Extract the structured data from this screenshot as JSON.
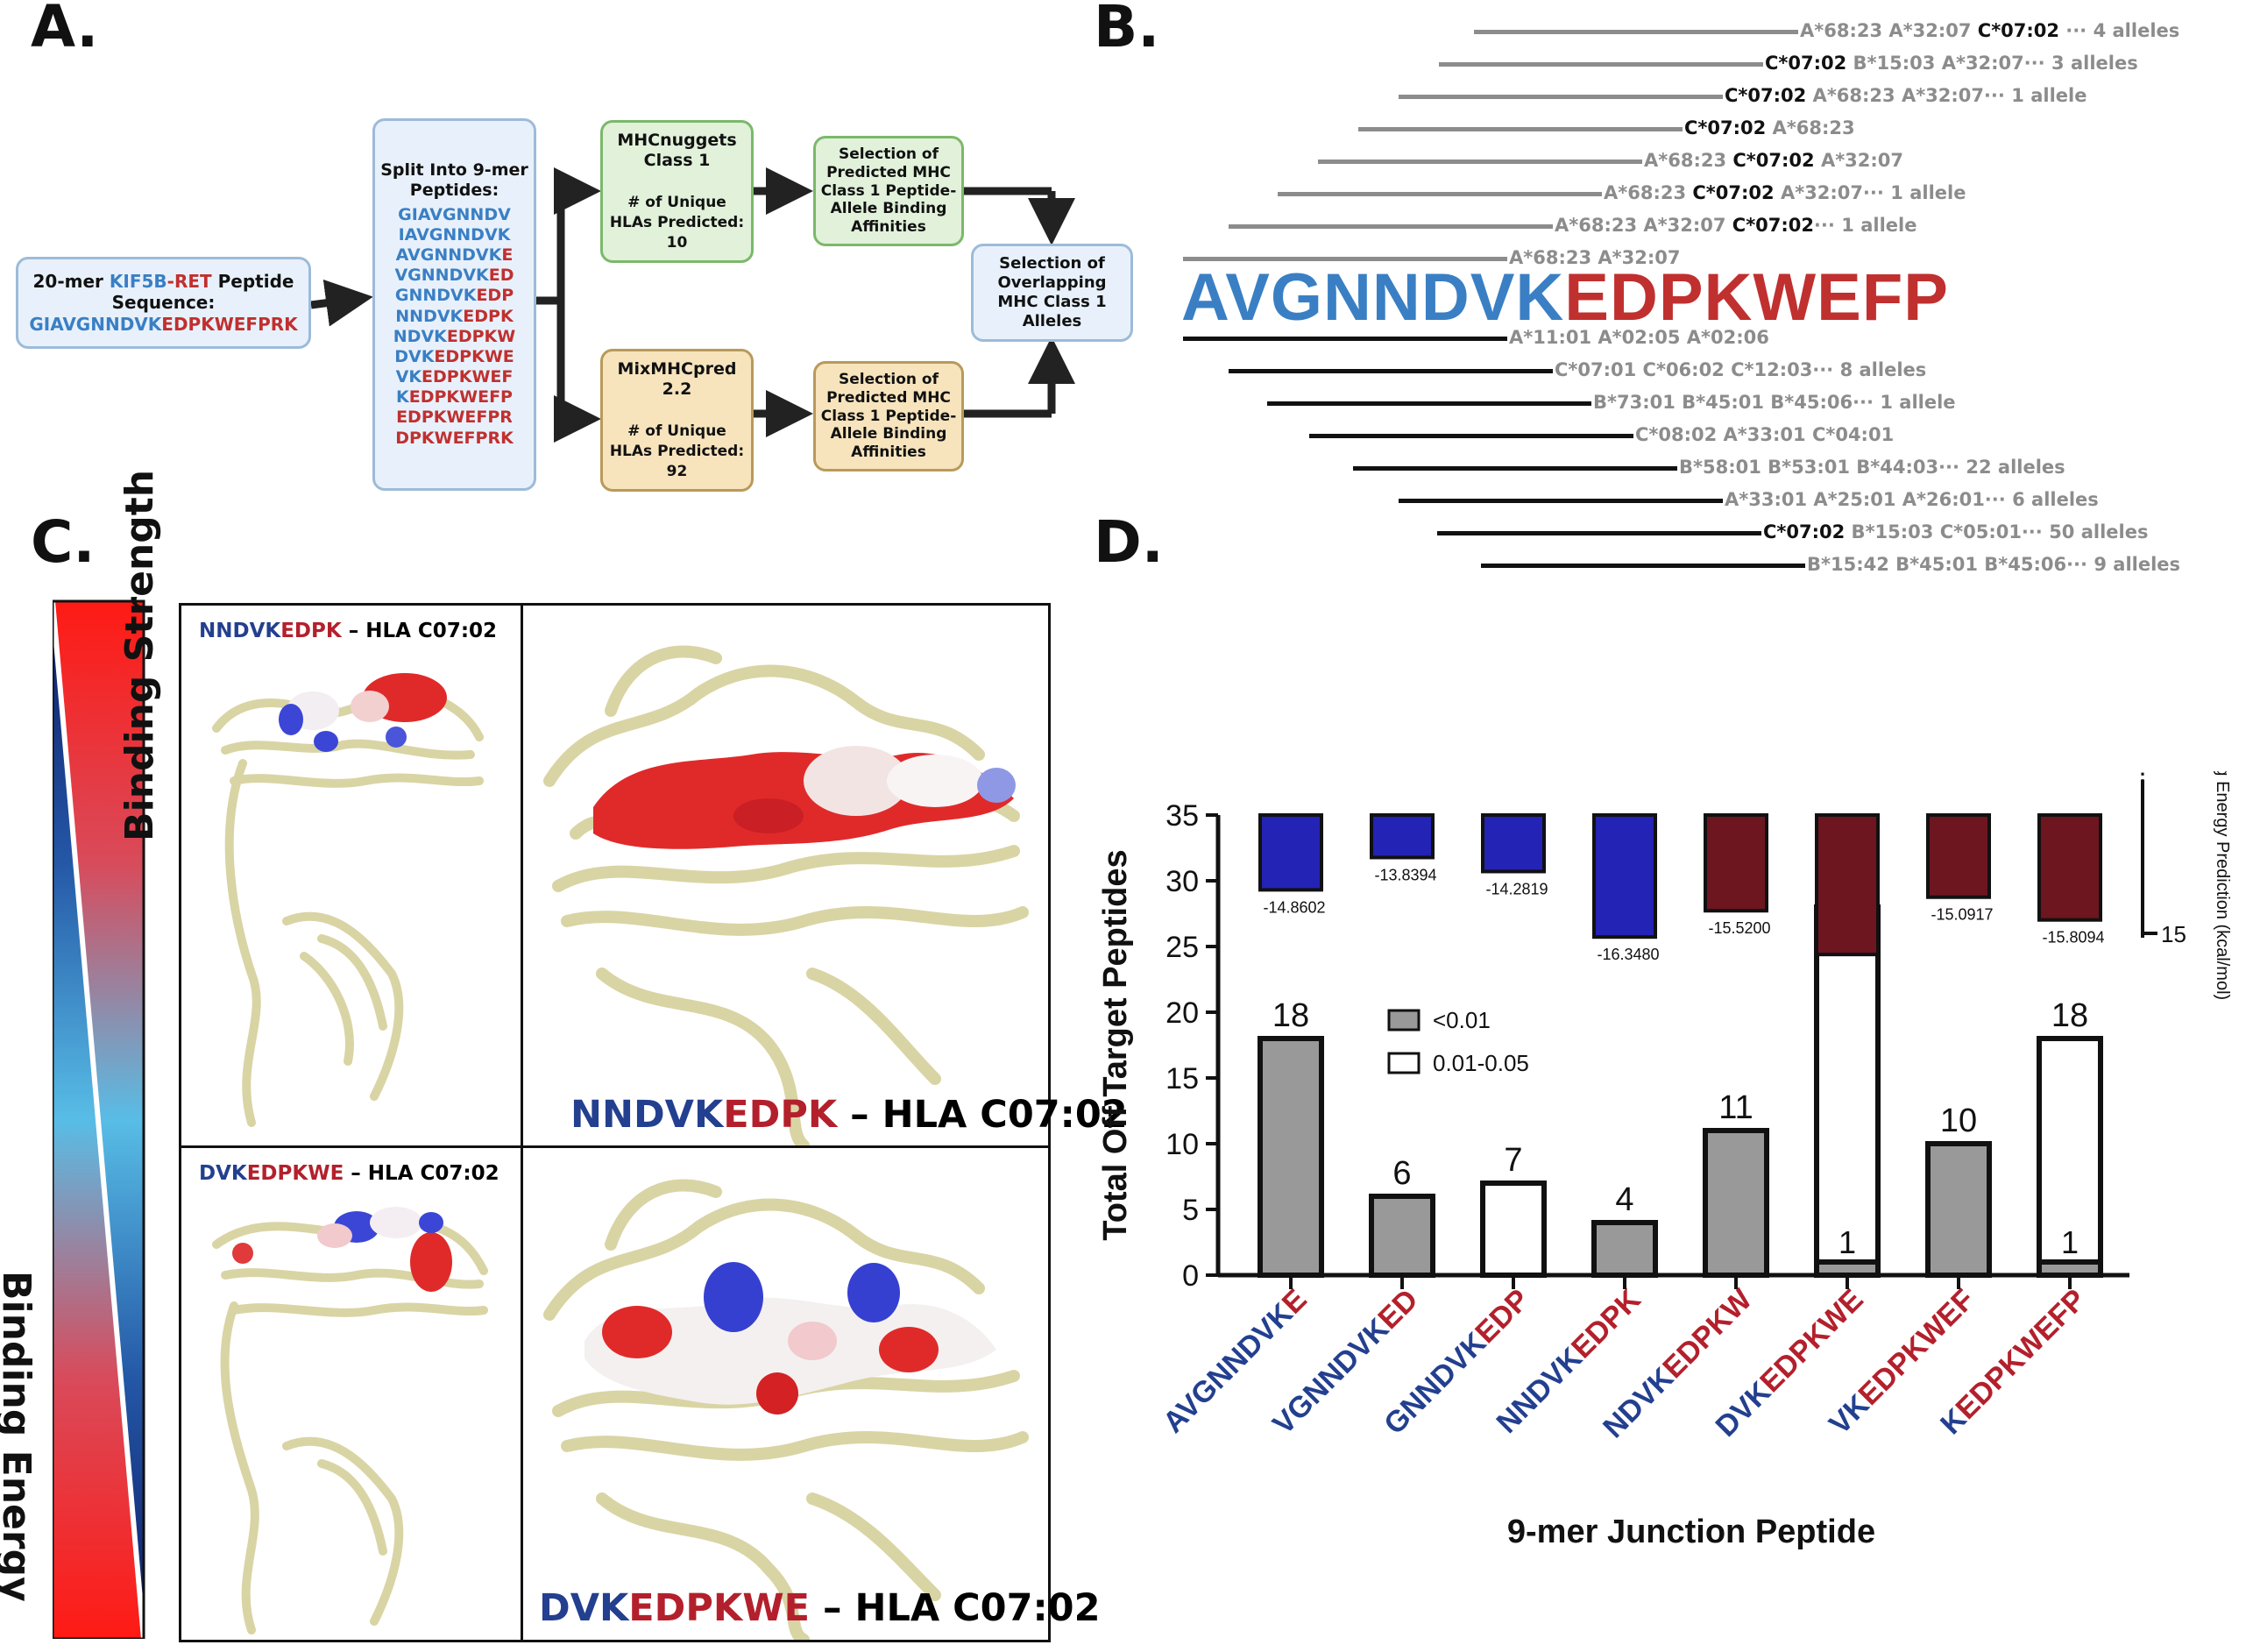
{
  "panels": {
    "a": "A.",
    "b": "B.",
    "c": "C.",
    "d": "D."
  },
  "panel_a": {
    "input": {
      "pre": "20-mer ",
      "gene1": "KIF5B",
      "dash": "-",
      "gene2": "RET",
      "post": " Peptide",
      "line2": "Sequence:",
      "seq_blue": "GIAVGNNDVK",
      "seq_red": "EDPKWEFPRK"
    },
    "split_title": "Split Into 9-mer Peptides:",
    "peptides": [
      {
        "b": "GIAVGNNDV",
        "r": ""
      },
      {
        "b": "IAVGNNDVK",
        "r": ""
      },
      {
        "b": "AVGNNDVK",
        "r": "E"
      },
      {
        "b": "VGNNDVK",
        "r": "ED"
      },
      {
        "b": "GNNDVK",
        "r": "EDP"
      },
      {
        "b": "NNDVK",
        "r": "EDPK"
      },
      {
        "b": "NDVK",
        "r": "EDPKW"
      },
      {
        "b": "DVK",
        "r": "EDPKWE"
      },
      {
        "b": "VK",
        "r": "EDPKWEF"
      },
      {
        "b": "K",
        "r": "EDPKWEFP"
      },
      {
        "b": "",
        "r": "EDPKWEFPR"
      },
      {
        "b": "",
        "r": "DPKWEFPRK"
      }
    ],
    "tool1": {
      "name": "MHCnuggets Class 1",
      "desc": "# of Unique HLAs Predicted: 10"
    },
    "tool2": {
      "name": "MixMHCpred 2.2",
      "desc": "# of Unique HLAs Predicted: 92"
    },
    "select": "Selection of Predicted MHC Class 1 Peptide-Allele Binding Affinities",
    "overlap": "Selection of Overlapping MHC Class 1 Alleles"
  },
  "panel_b": {
    "seq_blue": "AVGNNDVK",
    "seq_red": "EDPKWEFP",
    "top_rows": [
      {
        "grey": "A*68:23 A*32:07 ",
        "bold": "C*07:02",
        "rest": "",
        "tail": " ∙∙∙ 4 alleles"
      },
      {
        "grey": "",
        "bold": "C*07:02",
        "rest": " B*15:03 A*32:07",
        "tail": "∙∙∙ 3 alleles"
      },
      {
        "grey": "",
        "bold": "C*07:02",
        "rest": " A*68:23 A*32:07",
        "tail": "∙∙∙ 1 allele"
      },
      {
        "grey": "",
        "bold": "C*07:02",
        "rest": " A*68:23",
        "tail": ""
      },
      {
        "grey": "A*68:23 ",
        "bold": "C*07:02",
        "rest": " A*32:07",
        "tail": ""
      },
      {
        "grey": "A*68:23 ",
        "bold": "C*07:02",
        "rest": " A*32:07",
        "tail": "∙∙∙ 1 allele"
      },
      {
        "grey": "A*68:23 A*32:07 ",
        "bold": "C*07:02",
        "rest": "",
        "tail": "∙∙∙ 1 allele"
      },
      {
        "grey": "A*68:23 A*32:07",
        "bold": "",
        "rest": "",
        "tail": ""
      }
    ],
    "bottom_rows": [
      {
        "grey": "A*11:01 A*02:05 A*02:06",
        "bold": "",
        "rest": "",
        "tail": ""
      },
      {
        "grey": "C*07:01 C*06:02 C*12:03",
        "bold": "",
        "rest": "",
        "tail": "∙∙∙ 8 alleles"
      },
      {
        "grey": "B*73:01 B*45:01 B*45:06",
        "bold": "",
        "rest": "",
        "tail": "∙∙∙ 1 allele"
      },
      {
        "grey": "C*08:02 A*33:01 C*04:01",
        "bold": "",
        "rest": "",
        "tail": ""
      },
      {
        "grey": "B*58:01 B*53:01 B*44:03",
        "bold": "",
        "rest": "",
        "tail": "∙∙∙ 22 alleles"
      },
      {
        "grey": "A*33:01 A*25:01 A*26:01",
        "bold": "",
        "rest": "",
        "tail": "∙∙∙ 6 alleles"
      },
      {
        "grey": "",
        "bold": "C*07:02",
        "rest": " B*15:03 C*05:01",
        "tail": "∙∙∙ 50 alleles"
      },
      {
        "grey": "B*15:42 B*45:01 B*45:06",
        "bold": "",
        "rest": "",
        "tail": "∙∙∙ 9 alleles"
      }
    ]
  },
  "panel_c": {
    "strength": "Binding Strength",
    "energy": "Binding Energy",
    "top_small": {
      "b": "NNDVK",
      "r": "EDPK",
      "hla": " – HLA C07:02"
    },
    "top_large": {
      "b": "NNDVK",
      "r": "EDPK",
      "hla": " – HLA C07:02"
    },
    "bot_small": {
      "b": "DVK",
      "r": "EDPKWE",
      "hla": " – HLA C07:02"
    },
    "bot_large": {
      "b": "DVK",
      "r": "EDPKWE",
      "hla": " – HLA C07:02"
    }
  },
  "chart_data": {
    "type": "bar",
    "xlabel": "9-mer Junction Peptide",
    "ylabel": "Total Off Target Peptides",
    "right_axis_label": "Binding Energy Prediction (kcal/mol)",
    "right_axis_tick": "15",
    "ylim": [
      0,
      35
    ],
    "yticks": [
      0,
      5,
      10,
      15,
      20,
      25,
      30,
      35
    ],
    "categories": [
      {
        "b": "AVGNNDVK",
        "r": "E"
      },
      {
        "b": "VGNNDVK",
        "r": "ED"
      },
      {
        "b": "GNNDVK",
        "r": "EDP"
      },
      {
        "b": "NNDVK",
        "r": "EDPK"
      },
      {
        "b": "NDVK",
        "r": "EDPKW"
      },
      {
        "b": "DVK",
        "r": "EDPKWE"
      },
      {
        "b": "VK",
        "r": "EDPKWEF"
      },
      {
        "b": "K",
        "r": "EDPKWEFP"
      }
    ],
    "series": [
      {
        "name": "<0.01",
        "color": "#999999",
        "values": [
          18,
          6,
          0,
          4,
          11,
          1,
          10,
          1
        ]
      },
      {
        "name": "0.01-0.05",
        "color": "#ffffff",
        "values": [
          0,
          0,
          7,
          0,
          0,
          27,
          0,
          17
        ]
      }
    ],
    "total_labels": [
      "18",
      "6",
      "7",
      "4",
      "11",
      "28",
      "10",
      "18"
    ],
    "inner_labels": [
      "",
      "",
      "",
      "",
      "",
      "1",
      "",
      "1"
    ],
    "binding_energy": [
      -14.8602,
      -13.8394,
      -14.2819,
      -16.348,
      -15.52,
      -16.9,
      -15.0917,
      -15.8094
    ],
    "binding_energy_labels": [
      "-14.8602",
      "-13.8394",
      "-14.2819",
      "-16.3480",
      "-15.5200",
      "",
      "-15.0917",
      "-15.8094"
    ],
    "energy_colors": [
      "#2323b5",
      "#2323b5",
      "#2323b5",
      "#2323b5",
      "#6d1620",
      "#6d1620",
      "#6d1620",
      "#6d1620"
    ],
    "legend": [
      "<0.01",
      "0.01-0.05"
    ]
  }
}
